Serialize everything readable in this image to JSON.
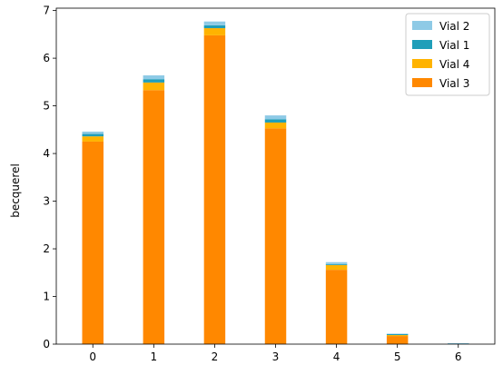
{
  "chart_data": {
    "type": "bar",
    "stacked": true,
    "title": "",
    "xlabel": "",
    "ylabel": "becquerel",
    "categories": [
      "0",
      "1",
      "2",
      "3",
      "4",
      "5",
      "6"
    ],
    "ylim": [
      0,
      7.05
    ],
    "xlim": [
      -0.6,
      6.6
    ],
    "yticks": [
      0,
      1,
      2,
      3,
      4,
      5,
      6,
      7
    ],
    "grid": false,
    "legend_position": "top-right",
    "series": [
      {
        "name": "Vial 3",
        "color": "#ff8800",
        "values": [
          4.25,
          5.33,
          6.48,
          4.53,
          1.56,
          0.17,
          0.0
        ]
      },
      {
        "name": "Vial 4",
        "color": "#ffb300",
        "values": [
          0.11,
          0.16,
          0.15,
          0.12,
          0.1,
          0.02,
          0.0
        ]
      },
      {
        "name": "Vial 1",
        "color": "#1f9eb9",
        "values": [
          0.05,
          0.07,
          0.06,
          0.07,
          0.02,
          0.02,
          0.01
        ]
      },
      {
        "name": "Vial 2",
        "color": "#8ecae6",
        "values": [
          0.05,
          0.08,
          0.08,
          0.08,
          0.04,
          0.01,
          0.01
        ]
      }
    ]
  }
}
